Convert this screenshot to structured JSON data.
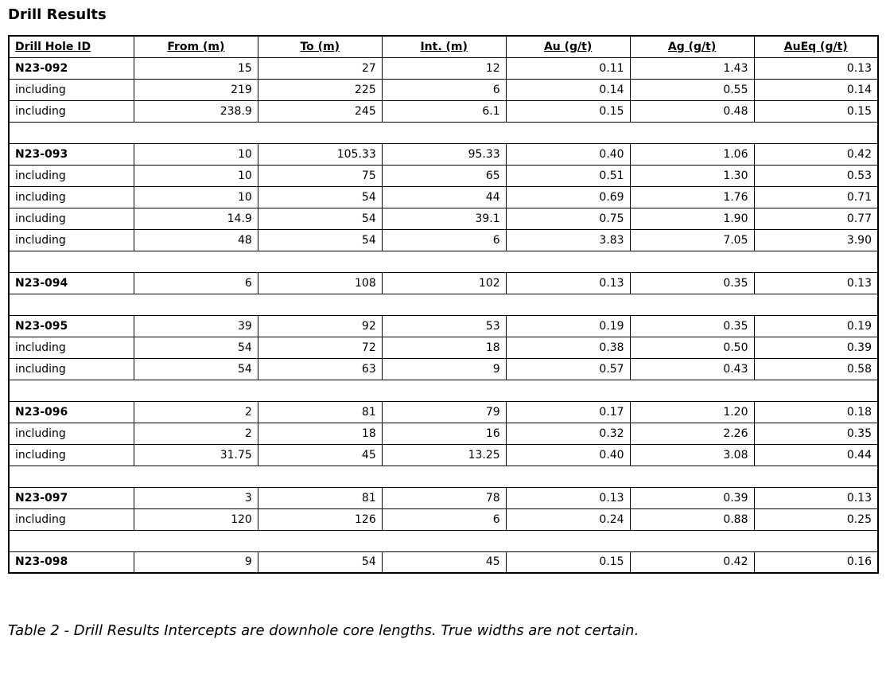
{
  "page": {
    "title": "Drill Results",
    "caption": "Table 2 - Drill Results Intercepts are downhole core lengths. True widths are not certain."
  },
  "table": {
    "headers": [
      "Drill Hole ID",
      "From (m)",
      "To (m)",
      "Int. (m)",
      "Au (g/t)",
      "Ag (g/t)",
      "AuEq (g/t)"
    ],
    "rows": [
      {
        "type": "hole",
        "label": "N23-092",
        "from": "15",
        "to": "27",
        "int": "12",
        "au": "0.11",
        "ag": "1.43",
        "aueq": "0.13"
      },
      {
        "type": "including",
        "label": "including",
        "from": "219",
        "to": "225",
        "int": "6",
        "au": "0.14",
        "ag": "0.55",
        "aueq": "0.14"
      },
      {
        "type": "including",
        "label": "including",
        "from": "238.9",
        "to": "245",
        "int": "6.1",
        "au": "0.15",
        "ag": "0.48",
        "aueq": "0.15"
      },
      {
        "type": "spacer"
      },
      {
        "type": "hole",
        "label": "N23-093",
        "from": "10",
        "to": "105.33",
        "int": "95.33",
        "au": "0.40",
        "ag": "1.06",
        "aueq": "0.42"
      },
      {
        "type": "including",
        "label": "including",
        "from": "10",
        "to": "75",
        "int": "65",
        "au": "0.51",
        "ag": "1.30",
        "aueq": "0.53"
      },
      {
        "type": "including",
        "label": "including",
        "from": "10",
        "to": "54",
        "int": "44",
        "au": "0.69",
        "ag": "1.76",
        "aueq": "0.71"
      },
      {
        "type": "including",
        "label": "including",
        "from": "14.9",
        "to": "54",
        "int": "39.1",
        "au": "0.75",
        "ag": "1.90",
        "aueq": "0.77"
      },
      {
        "type": "including",
        "label": "including",
        "from": "48",
        "to": "54",
        "int": "6",
        "au": "3.83",
        "ag": "7.05",
        "aueq": "3.90"
      },
      {
        "type": "spacer"
      },
      {
        "type": "hole",
        "label": "N23-094",
        "from": "6",
        "to": "108",
        "int": "102",
        "au": "0.13",
        "ag": "0.35",
        "aueq": "0.13"
      },
      {
        "type": "spacer"
      },
      {
        "type": "hole",
        "label": "N23-095",
        "from": "39",
        "to": "92",
        "int": "53",
        "au": "0.19",
        "ag": "0.35",
        "aueq": "0.19"
      },
      {
        "type": "including",
        "label": "including",
        "from": "54",
        "to": "72",
        "int": "18",
        "au": "0.38",
        "ag": "0.50",
        "aueq": "0.39"
      },
      {
        "type": "including",
        "label": "including",
        "from": "54",
        "to": "63",
        "int": "9",
        "au": "0.57",
        "ag": "0.43",
        "aueq": "0.58"
      },
      {
        "type": "spacer"
      },
      {
        "type": "hole",
        "label": "N23-096",
        "from": "2",
        "to": "81",
        "int": "79",
        "au": "0.17",
        "ag": "1.20",
        "aueq": "0.18"
      },
      {
        "type": "including",
        "label": "including",
        "from": "2",
        "to": "18",
        "int": "16",
        "au": "0.32",
        "ag": "2.26",
        "aueq": "0.35"
      },
      {
        "type": "including",
        "label": "including",
        "from": "31.75",
        "to": "45",
        "int": "13.25",
        "au": "0.40",
        "ag": "3.08",
        "aueq": "0.44"
      },
      {
        "type": "spacer"
      },
      {
        "type": "hole",
        "label": "N23-097",
        "from": "3",
        "to": "81",
        "int": "78",
        "au": "0.13",
        "ag": "0.39",
        "aueq": "0.13"
      },
      {
        "type": "including",
        "label": "including",
        "from": "120",
        "to": "126",
        "int": "6",
        "au": "0.24",
        "ag": "0.88",
        "aueq": "0.25"
      },
      {
        "type": "spacer"
      },
      {
        "type": "hole",
        "label": "N23-098",
        "from": "9",
        "to": "54",
        "int": "45",
        "au": "0.15",
        "ag": "0.42",
        "aueq": "0.16"
      }
    ]
  }
}
